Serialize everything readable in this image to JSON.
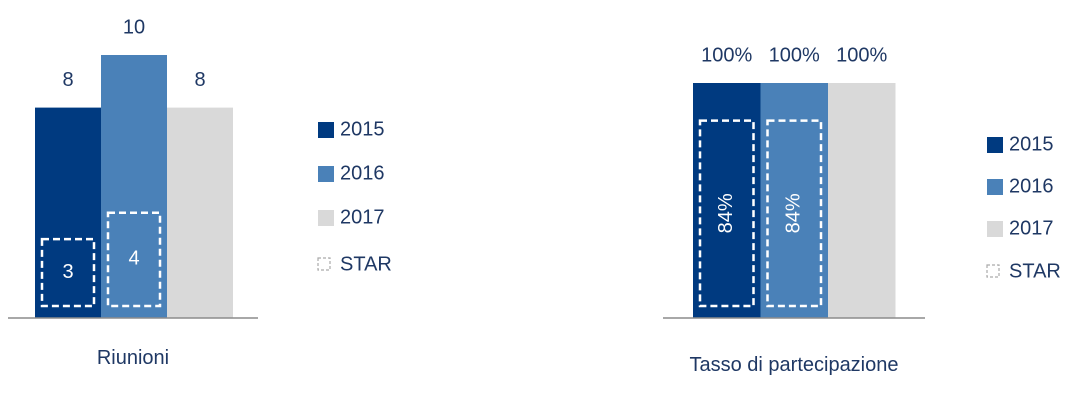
{
  "chart_data": [
    {
      "type": "bar",
      "categories": [
        "Riunioni"
      ],
      "series": [
        {
          "name": "2015",
          "color": "#003a80",
          "values": [
            8
          ]
        },
        {
          "name": "2016",
          "color": "#4a81b8",
          "values": [
            10
          ]
        },
        {
          "name": "2017",
          "color": "#d9d9d9",
          "values": [
            8
          ]
        }
      ],
      "star": {
        "name": "STAR",
        "values": [
          3,
          4,
          null
        ]
      }
    },
    {
      "type": "bar",
      "categories": [
        "Tasso di partecipazione"
      ],
      "series": [
        {
          "name": "2015",
          "color": "#003a80",
          "values": [
            100
          ],
          "value_labels": [
            "100%"
          ]
        },
        {
          "name": "2016",
          "color": "#4a81b8",
          "values": [
            100
          ],
          "value_labels": [
            "100%"
          ]
        },
        {
          "name": "2017",
          "color": "#d9d9d9",
          "values": [
            100
          ],
          "value_labels": [
            "100%"
          ]
        }
      ],
      "star": {
        "name": "STAR",
        "values": [
          84,
          84,
          null
        ],
        "value_labels": [
          "84%",
          "84%",
          null
        ]
      }
    }
  ]
}
